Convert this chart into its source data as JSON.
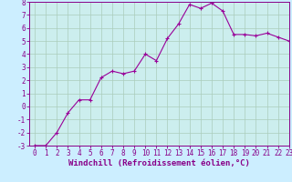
{
  "x": [
    0,
    1,
    2,
    3,
    4,
    5,
    6,
    7,
    8,
    9,
    10,
    11,
    12,
    13,
    14,
    15,
    16,
    17,
    18,
    19,
    20,
    21,
    22,
    23
  ],
  "y": [
    -3,
    -3,
    -2,
    -0.5,
    0.5,
    0.5,
    2.2,
    2.7,
    2.5,
    2.7,
    4.0,
    3.5,
    5.2,
    6.3,
    7.8,
    7.5,
    7.9,
    7.3,
    5.5,
    5.5,
    5.4,
    5.6,
    5.3,
    5.0
  ],
  "line_color": "#990099",
  "marker": "+",
  "marker_color": "#990099",
  "bg_color": "#cceeff",
  "plot_bg_color": "#cceeee",
  "grid_color": "#aaccbb",
  "xlabel": "Windchill (Refroidissement éolien,°C)",
  "xlabel_color": "#880088",
  "tick_color": "#880088",
  "spine_color": "#880088",
  "ylim": [
    -3,
    8
  ],
  "xlim": [
    -0.5,
    23
  ],
  "yticks": [
    -3,
    -2,
    -1,
    0,
    1,
    2,
    3,
    4,
    5,
    6,
    7,
    8
  ],
  "xticks": [
    0,
    1,
    2,
    3,
    4,
    5,
    6,
    7,
    8,
    9,
    10,
    11,
    12,
    13,
    14,
    15,
    16,
    17,
    18,
    19,
    20,
    21,
    22,
    23
  ],
  "tick_fontsize": 5.5,
  "xlabel_fontsize": 6.5,
  "line_width": 0.8,
  "marker_size": 3
}
